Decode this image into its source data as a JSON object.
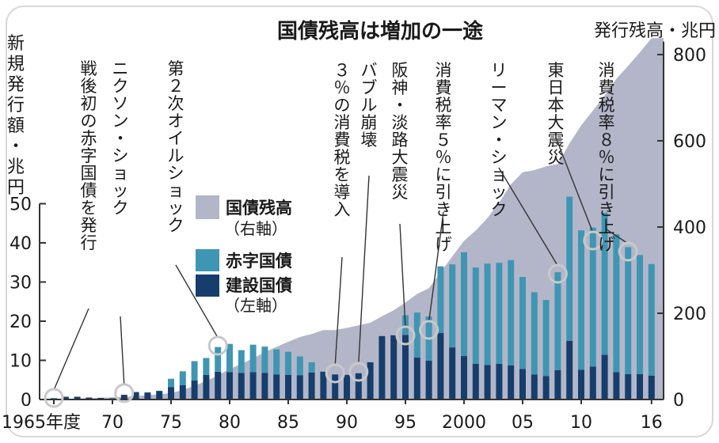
{
  "chart_data": {
    "type": "bar",
    "title": "国債残高は増加の一途",
    "left_axis_label": "新規発行額・兆円",
    "right_axis_label": "発行残高・兆円",
    "left_ylim": [
      0,
      55
    ],
    "right_ylim": [
      0,
      850
    ],
    "left_ticks": [
      "0",
      "10",
      "20",
      "30",
      "40",
      "50"
    ],
    "right_ticks": [
      "0",
      "200",
      "400",
      "600",
      "800"
    ],
    "x_tick_labels": [
      {
        "year": 1965,
        "label": "1965年度"
      },
      {
        "year": 1970,
        "label": "70"
      },
      {
        "year": 1975,
        "label": "75"
      },
      {
        "year": 1980,
        "label": "80"
      },
      {
        "year": 1985,
        "label": "85"
      },
      {
        "year": 1990,
        "label": "90"
      },
      {
        "year": 1995,
        "label": "95"
      },
      {
        "year": 2000,
        "label": "2000"
      },
      {
        "year": 2005,
        "label": "05"
      },
      {
        "year": 2010,
        "label": "10"
      },
      {
        "year": 2016,
        "label": "16"
      }
    ],
    "legend": {
      "outstanding": "国債残高",
      "outstanding_axis": "（右軸）",
      "deficit": "赤字国債",
      "construction": "建設国債",
      "bars_axis": "（左軸）"
    },
    "colors": {
      "outstanding": "#b3b6c9",
      "deficit": "#3f96b3",
      "construction": "#163e6c",
      "marker": "#c9c9c9"
    },
    "years": [
      1965,
      1966,
      1967,
      1968,
      1969,
      1970,
      1971,
      1972,
      1973,
      1974,
      1975,
      1976,
      1977,
      1978,
      1979,
      1980,
      1981,
      1982,
      1983,
      1984,
      1985,
      1986,
      1987,
      1988,
      1989,
      1990,
      1991,
      1992,
      1993,
      1994,
      1995,
      1996,
      1997,
      1998,
      1999,
      2000,
      2001,
      2002,
      2003,
      2004,
      2005,
      2006,
      2007,
      2008,
      2009,
      2010,
      2011,
      2012,
      2013,
      2014,
      2015,
      2016
    ],
    "series": [
      {
        "name": "建設国債",
        "values": [
          0.2,
          0.7,
          0.7,
          0.5,
          0.4,
          0.3,
          1.2,
          1.9,
          1.8,
          2.2,
          3.2,
          3.7,
          4.9,
          6.3,
          7.1,
          7.0,
          6.8,
          7.0,
          6.8,
          6.4,
          6.3,
          6.2,
          6.9,
          7.1,
          6.4,
          6.3,
          6.7,
          9.5,
          16.2,
          16.4,
          16.5,
          10.7,
          9.9,
          17.0,
          13.3,
          11.1,
          9.1,
          8.8,
          9.1,
          8.7,
          7.8,
          6.4,
          6.0,
          7.5,
          15.0,
          7.6,
          8.4,
          11.4,
          7.0,
          6.5,
          6.5,
          6.1
        ]
      },
      {
        "name": "赤字国債",
        "values": [
          0.2,
          0,
          0,
          0,
          0,
          0,
          0,
          0,
          0,
          0,
          2.1,
          3.5,
          4.9,
          4.3,
          6.3,
          7.2,
          5.8,
          7.0,
          6.7,
          6.4,
          5.9,
          4.8,
          2.6,
          0,
          0,
          0,
          0,
          0,
          0,
          0,
          5.0,
          11.5,
          11.3,
          17.0,
          21.2,
          26.5,
          24.6,
          25.9,
          25.8,
          26.9,
          23.5,
          21.0,
          19.4,
          25.0,
          36.8,
          35.6,
          35.5,
          36.3,
          35.2,
          32.4,
          30.4,
          28.5
        ]
      },
      {
        "name": "国債残高",
        "values": [
          0.2,
          1,
          2,
          3,
          4,
          5,
          6,
          8,
          10,
          12,
          15,
          22,
          32,
          43,
          56,
          71,
          82,
          96,
          110,
          122,
          134,
          145,
          152,
          161,
          161,
          166,
          172,
          178,
          193,
          207,
          225,
          245,
          258,
          295,
          332,
          368,
          392,
          421,
          457,
          499,
          527,
          532,
          541,
          546,
          594,
          636,
          670,
          705,
          744,
          774,
          805,
          838
        ]
      }
    ],
    "annotations": [
      {
        "year": 1965,
        "text": "戦後初の赤字国債を発行"
      },
      {
        "year": 1971,
        "text": "ニクソン・ショック"
      },
      {
        "year": 1979,
        "text": "第２次オイルショック"
      },
      {
        "year": 1989,
        "text": "３％の消費税を導入"
      },
      {
        "year": 1991,
        "text": "バブル崩壊"
      },
      {
        "year": 1995,
        "text": "阪神・淡路大震災"
      },
      {
        "year": 1997,
        "text": "消費税率５％に引き上げ"
      },
      {
        "year": 2008,
        "text": "リーマン・ショック"
      },
      {
        "year": 2011,
        "text": "東日本大震災"
      },
      {
        "year": 2014,
        "text": "消費税率８％に引き上げ"
      }
    ]
  }
}
